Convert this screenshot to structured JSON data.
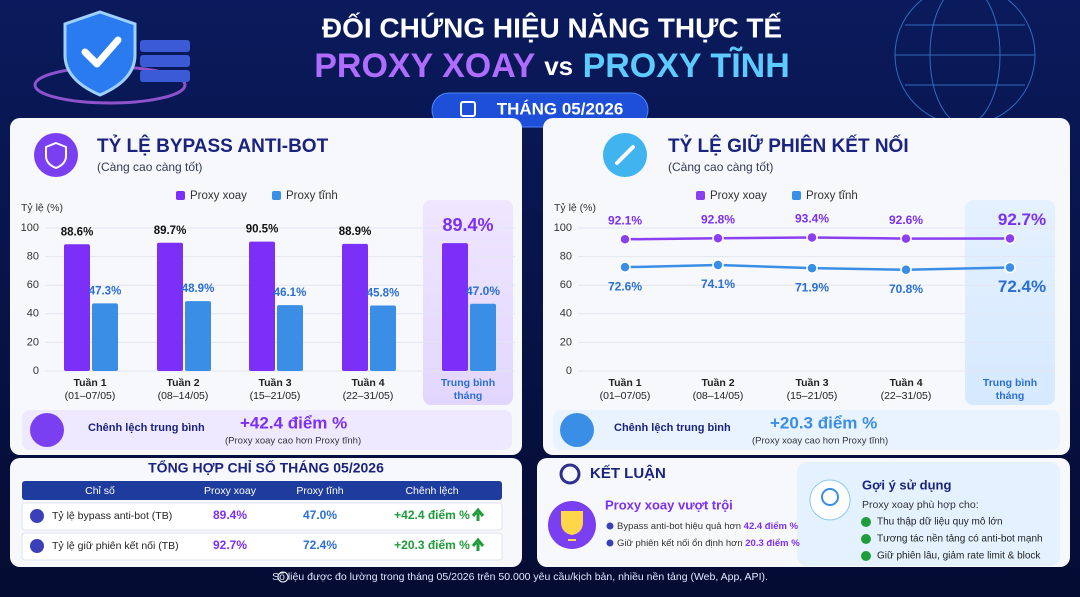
{
  "header": {
    "title": "ĐỐI CHỨNG HIỆU NĂNG THỰC TẾ",
    "title_a": "PROXY XOAY",
    "title_vs": "vs",
    "title_b": "PROXY TĨNH",
    "badge": "THÁNG 05/2026"
  },
  "chart_data": [
    {
      "type": "bar",
      "title": "TỶ LỆ BYPASS ANTI-BOT",
      "subtitle": "(Càng cao càng tốt)",
      "y_label": "Tỷ lệ (%)",
      "categories": [
        [
          "Tuần 1",
          "(01–07/05)"
        ],
        [
          "Tuần 2",
          "(08–14/05)"
        ],
        [
          "Tuần 3",
          "(15–21/05)"
        ],
        [
          "Tuần 4",
          "(22–31/05)"
        ],
        [
          "Trung bình",
          "tháng"
        ]
      ],
      "series": [
        {
          "name": "Proxy xoay",
          "color": "#7b2ff7",
          "values": [
            88.6,
            89.7,
            90.5,
            88.9,
            89.4
          ],
          "value_labels": [
            "88.6%",
            "89.7%",
            "90.5%",
            "88.9%",
            "89.4%"
          ]
        },
        {
          "name": "Proxy tĩnh",
          "color": "#3a8ee6",
          "values": [
            47.3,
            48.9,
            46.1,
            45.8,
            47.0
          ],
          "value_labels": [
            "47.3%",
            "48.9%",
            "46.1%",
            "45.8%",
            "47.0%"
          ]
        }
      ],
      "ylim": [
        0,
        100
      ],
      "yticks": [
        0,
        20,
        40,
        60,
        80,
        100
      ],
      "grid": true,
      "diff_label": "Chênh lệch trung bình",
      "diff_value": "+42.4 điểm %",
      "diff_note": "(Proxy xoay cao hơn Proxy tĩnh)"
    },
    {
      "type": "line",
      "title": "TỶ LỆ GIỮ PHIÊN KẾT NỐI",
      "subtitle": "(Càng cao càng tốt)",
      "y_label": "Tỷ lệ (%)",
      "categories": [
        [
          "Tuần 1",
          "(01–07/05)"
        ],
        [
          "Tuần 2",
          "(08–14/05)"
        ],
        [
          "Tuần 3",
          "(15–21/05)"
        ],
        [
          "Tuần 4",
          "(22–31/05)"
        ],
        [
          "Trung bình",
          "tháng"
        ]
      ],
      "series": [
        {
          "name": "Proxy xoay",
          "color": "#8a3ff0",
          "values": [
            92.1,
            92.8,
            93.4,
            92.6,
            92.7
          ],
          "value_labels": [
            "92.1%",
            "92.8%",
            "93.4%",
            "92.6%",
            "92.7%"
          ]
        },
        {
          "name": "Proxy tĩnh",
          "color": "#3a8ee6",
          "values": [
            72.6,
            74.1,
            71.9,
            70.8,
            72.4
          ],
          "value_labels": [
            "72.6%",
            "74.1%",
            "71.9%",
            "70.8%",
            "72.4%"
          ]
        }
      ],
      "ylim": [
        0,
        100
      ],
      "yticks": [
        0,
        20,
        40,
        60,
        80,
        100
      ],
      "grid": true,
      "diff_label": "Chênh lệch trung bình",
      "diff_value": "+20.3 điểm %",
      "diff_note": "(Proxy xoay cao hơn Proxy tĩnh)"
    }
  ],
  "table": {
    "title": "TỔNG HỢP CHỈ SỐ THÁNG 05/2026",
    "header": [
      "Chỉ số",
      "Proxy xoay",
      "Proxy tĩnh",
      "Chênh lệch"
    ],
    "rows": [
      [
        "Tỷ lệ bypass anti-bot (TB)",
        "89.4%",
        "47.0%",
        "+42.4 điểm %"
      ],
      [
        "Tỷ lệ giữ phiên kết nối (TB)",
        "92.7%",
        "72.4%",
        "+20.3 điểm %"
      ]
    ]
  },
  "conclusion": {
    "title": "KẾT LUẬN",
    "headline": "Proxy xoay vượt trội",
    "points": [
      {
        "text": "Bypass anti-bot hiệu quả hơn ",
        "highlight": "42.4 điểm %"
      },
      {
        "text": "Giữ phiên kết nối ổn định hơn ",
        "highlight": "20.3 điểm %"
      }
    ],
    "suggestion": {
      "title": "Gợi ý sử dụng",
      "intro": "Proxy xoay phù hợp cho:",
      "items": [
        "Thu thập dữ liệu quy mô lớn",
        "Tương tác nền tảng có anti-bot mạnh",
        "Giữ phiên lâu, giảm rate limit & block"
      ]
    }
  },
  "footer": "Số liệu được đo lường trong tháng 05/2026 trên 50.000 yêu cầu/kịch bản, nhiều nền tảng (Web, App, API)."
}
